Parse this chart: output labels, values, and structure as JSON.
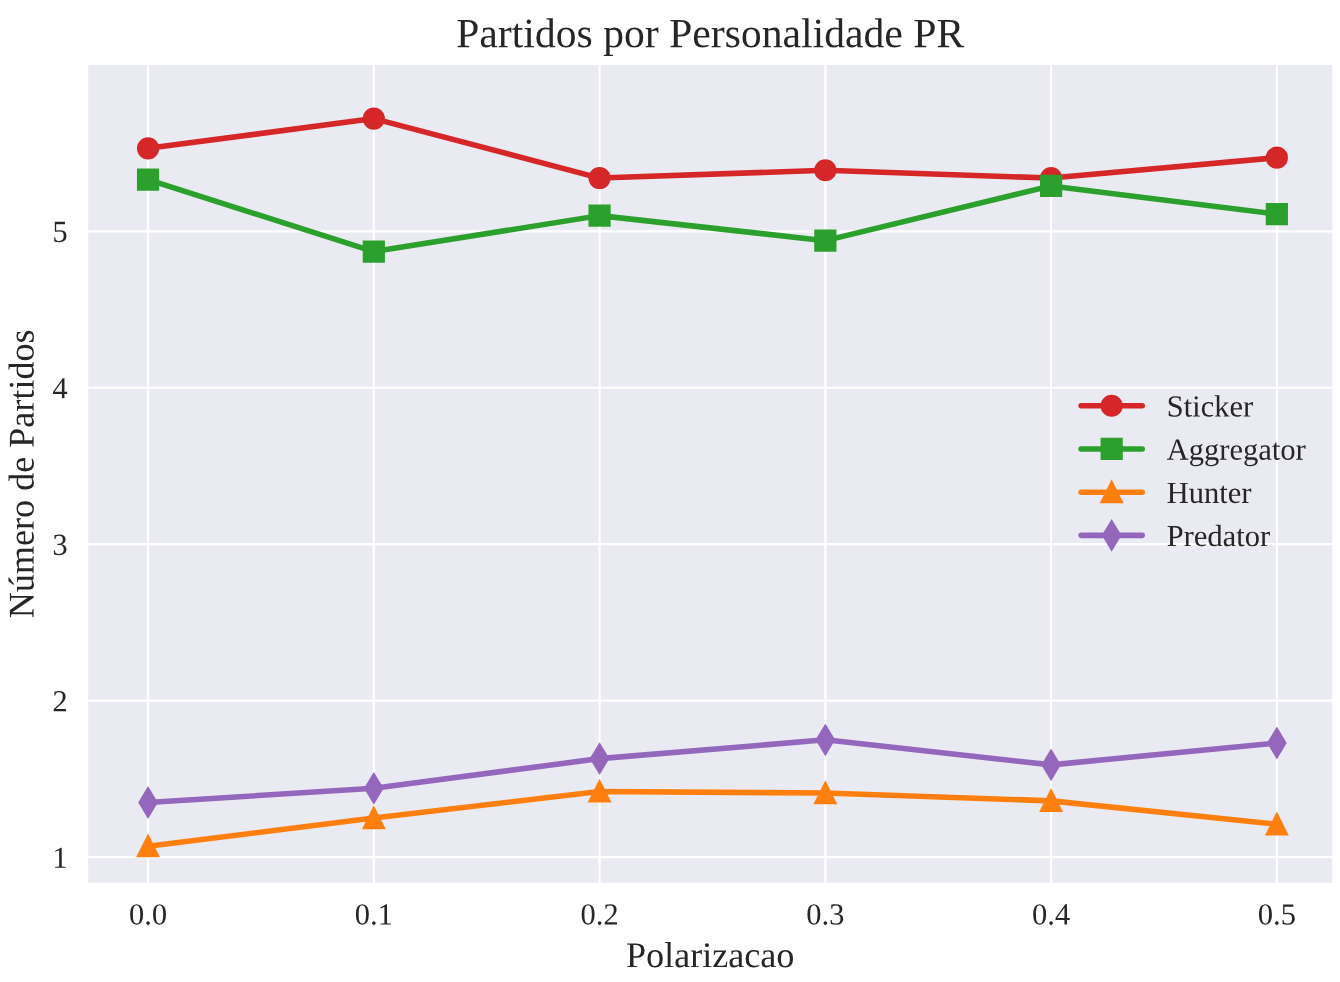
{
  "chart_data": {
    "type": "line",
    "title": "Partidos por Personalidade PR",
    "xlabel": "Polarizacao",
    "ylabel": "Número de Partidos",
    "x": [
      0.0,
      0.1,
      0.2,
      0.3,
      0.4,
      0.5
    ],
    "series": [
      {
        "name": "Sticker",
        "color": "#d62728",
        "marker": "circle",
        "values": [
          5.53,
          5.72,
          5.34,
          5.39,
          5.34,
          5.47
        ]
      },
      {
        "name": "Aggregator",
        "color": "#2ca02c",
        "marker": "square",
        "values": [
          5.33,
          4.87,
          5.1,
          4.94,
          5.29,
          5.11
        ]
      },
      {
        "name": "Hunter",
        "color": "#ff7f0e",
        "marker": "triangle",
        "values": [
          1.07,
          1.25,
          1.42,
          1.41,
          1.36,
          1.21
        ]
      },
      {
        "name": "Predator",
        "color": "#9467bd",
        "marker": "diamond",
        "values": [
          1.35,
          1.44,
          1.63,
          1.75,
          1.59,
          1.73
        ]
      }
    ],
    "xlim": [
      -0.027,
      0.525
    ],
    "ylim": [
      0.83,
      6.07
    ],
    "xticks": [
      {
        "value": 0.0,
        "label": "0.0"
      },
      {
        "value": 0.1,
        "label": "0.1"
      },
      {
        "value": 0.2,
        "label": "0.2"
      },
      {
        "value": 0.3,
        "label": "0.3"
      },
      {
        "value": 0.4,
        "label": "0.4"
      },
      {
        "value": 0.5,
        "label": "0.5"
      }
    ],
    "yticks": [
      1,
      2,
      3,
      4,
      5
    ],
    "grid": true,
    "legend": "right",
    "line_style": "solid"
  }
}
